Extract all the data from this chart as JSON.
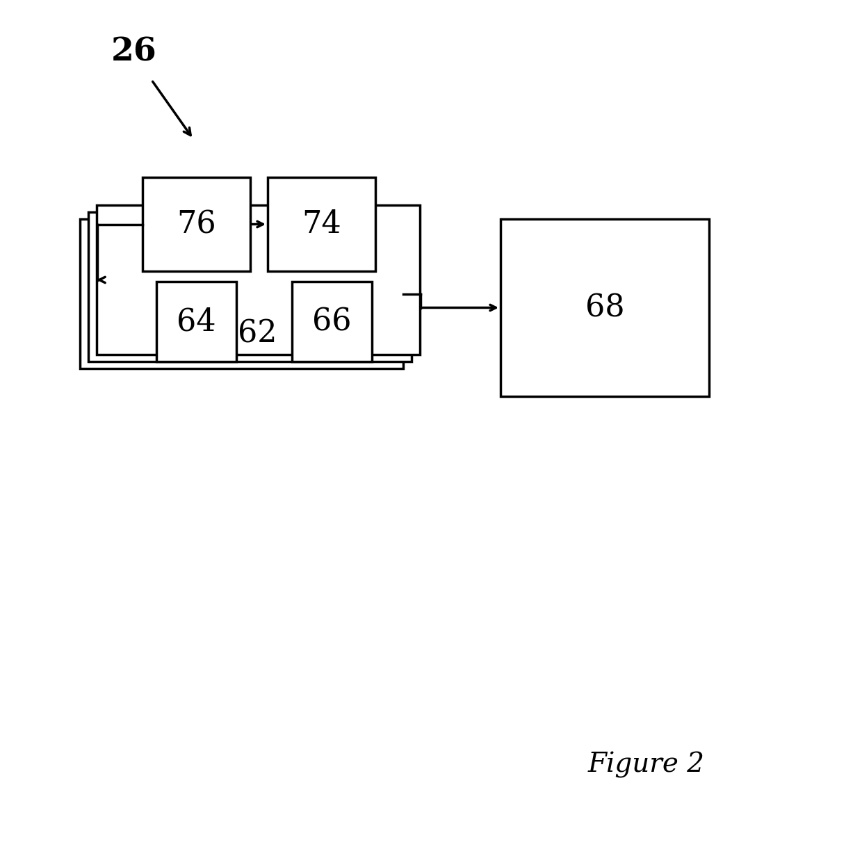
{
  "bg_color": "#ffffff",
  "text_color": "#000000",
  "line_color": "#000000",
  "figure_label": "Figure 2",
  "label_26": "26",
  "label_76": "76",
  "label_74": "74",
  "label_62": "62",
  "label_64": "64",
  "label_66": "66",
  "label_68": "68",
  "font_size_large": 32,
  "font_size_fig": 28,
  "line_width": 2.5
}
